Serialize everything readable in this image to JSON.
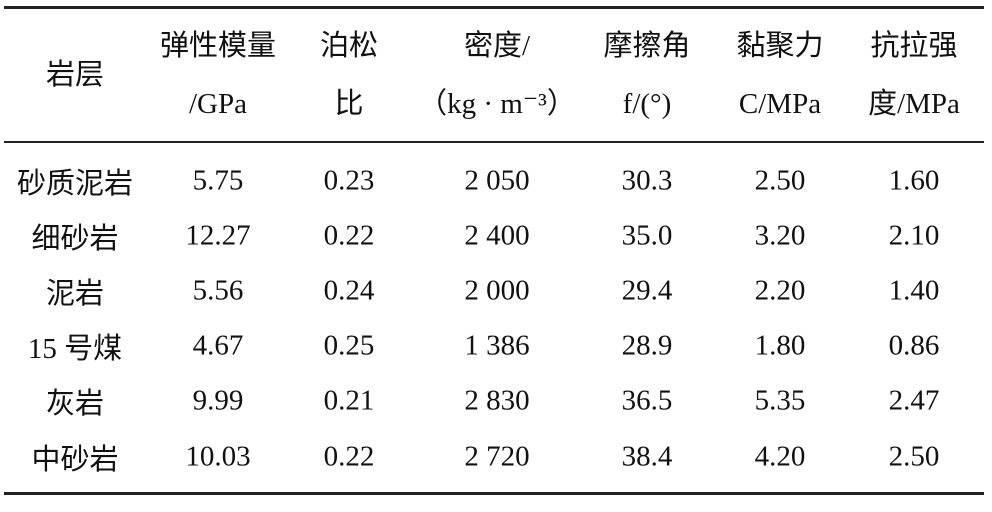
{
  "table": {
    "header": [
      [
        "岩层"
      ],
      [
        "弹性模量",
        "/GPa"
      ],
      [
        "泊松",
        "比"
      ],
      [
        "密度/",
        "（kg · m⁻³）"
      ],
      [
        "摩擦角",
        "f/(°)"
      ],
      [
        "黏聚力",
        "C/MPa"
      ],
      [
        "抗拉强",
        "度/MPa"
      ]
    ],
    "rows": [
      [
        "砂质泥岩",
        "5.75",
        "0.23",
        "2 050",
        "30.3",
        "2.50",
        "1.60"
      ],
      [
        "细砂岩",
        "12.27",
        "0.22",
        "2 400",
        "35.0",
        "3.20",
        "2.10"
      ],
      [
        "泥岩",
        "5.56",
        "0.24",
        "2 000",
        "29.4",
        "2.20",
        "1.40"
      ],
      [
        "15 号煤",
        "4.67",
        "0.25",
        "1 386",
        "28.9",
        "1.80",
        "0.86"
      ],
      [
        "灰岩",
        "9.99",
        "0.21",
        "2 830",
        "36.5",
        "5.35",
        "2.47"
      ],
      [
        "中砂岩",
        "10.03",
        "0.22",
        "2 720",
        "38.4",
        "4.20",
        "2.50"
      ]
    ]
  }
}
